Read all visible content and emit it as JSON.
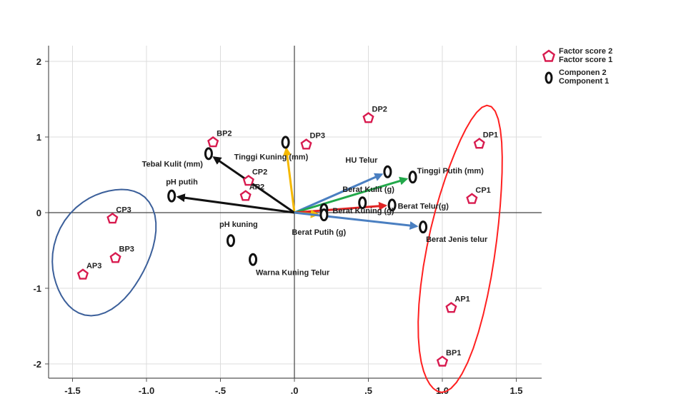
{
  "chart_data": {
    "type": "scatter",
    "title": "",
    "xlabel": "",
    "ylabel": "",
    "xlim": [
      -1.65,
      1.67
    ],
    "ylim": [
      -2.2,
      2.2
    ],
    "xticks": [
      -1.5,
      -1.0,
      -0.5,
      0.0,
      0.5,
      1.0,
      1.5
    ],
    "xtick_labels": [
      "-1.5",
      "-1.0",
      "-.5",
      ".0",
      ".5",
      "1.0",
      "1.5"
    ],
    "yticks": [
      2,
      1,
      0,
      -1,
      -2
    ],
    "ytick_labels": [
      "2",
      "1",
      "0",
      "-1",
      "-2"
    ],
    "grid": true,
    "legend_position": "top-right",
    "legend": [
      {
        "marker": "pentagon",
        "line1": "Factor score  2",
        "line2": "Factor score  1"
      },
      {
        "marker": "zero",
        "line1": "Componen 2",
        "line2": "Component 1"
      }
    ],
    "factor_scores": [
      {
        "label": "BP2",
        "x": -0.55,
        "y": 0.93
      },
      {
        "label": "DP2",
        "x": 0.5,
        "y": 1.25
      },
      {
        "label": "DP3",
        "x": 0.08,
        "y": 0.9
      },
      {
        "label": "CP2",
        "x": -0.31,
        "y": 0.42
      },
      {
        "label": "AP2",
        "x": -0.33,
        "y": 0.22
      },
      {
        "label": "DP1",
        "x": 1.25,
        "y": 0.91
      },
      {
        "label": "CP1",
        "x": 1.2,
        "y": 0.18
      },
      {
        "label": "CP3",
        "x": -1.23,
        "y": -0.08
      },
      {
        "label": "BP3",
        "x": -1.21,
        "y": -0.6
      },
      {
        "label": "AP3",
        "x": -1.43,
        "y": -0.82
      },
      {
        "label": "AP1",
        "x": 1.06,
        "y": -1.26
      },
      {
        "label": "BP1",
        "x": 1.0,
        "y": -1.97
      }
    ],
    "component_loadings": [
      {
        "label": "Tinggi Kuning (mm)",
        "x": -0.06,
        "y": 0.93,
        "arrow_color": "#f5b800"
      },
      {
        "label": "Tebal Kulit (mm)",
        "x": -0.58,
        "y": 0.78,
        "arrow_color": "#111111"
      },
      {
        "label": "pH putih",
        "x": -0.83,
        "y": 0.22,
        "arrow_color": "#111111"
      },
      {
        "label": "HU Telur",
        "x": 0.63,
        "y": 0.54,
        "arrow_color": "#4a7fc1"
      },
      {
        "label": "Tinggi Putih (mm)",
        "x": 0.8,
        "y": 0.47,
        "arrow_color": "#22a84a"
      },
      {
        "label": "Berat Kulit (g)",
        "x": 0.46,
        "y": 0.13,
        "arrow_color": ""
      },
      {
        "label": "Berat Telur(g)",
        "x": 0.66,
        "y": 0.1,
        "arrow_color": "#e02424"
      },
      {
        "label": "Berat Kuning (g)",
        "x": 0.2,
        "y": 0.04,
        "arrow_color": ""
      },
      {
        "label": "Berat Putih (g)",
        "x": 0.2,
        "y": -0.03,
        "arrow_color": "#f5b800"
      },
      {
        "label": "Berat Jenis telur",
        "x": 0.87,
        "y": -0.19,
        "arrow_color": "#4a7fc1"
      },
      {
        "label": "pH kuning",
        "x": -0.43,
        "y": -0.37,
        "arrow_color": ""
      },
      {
        "label": "Warna Kuning Telur",
        "x": -0.28,
        "y": -0.62,
        "arrow_color": ""
      }
    ],
    "clusters": [
      {
        "points": [
          "CP3",
          "BP3",
          "AP3"
        ],
        "color": "#3b5f9a"
      },
      {
        "points": [
          "DP1",
          "CP1",
          "AP1",
          "BP1"
        ],
        "color": "#ff2020"
      }
    ],
    "colors": {
      "factor_marker": "#d81b4f",
      "component_marker": "#111111",
      "axis": "#555555",
      "grid": "#dcdcdc"
    }
  }
}
